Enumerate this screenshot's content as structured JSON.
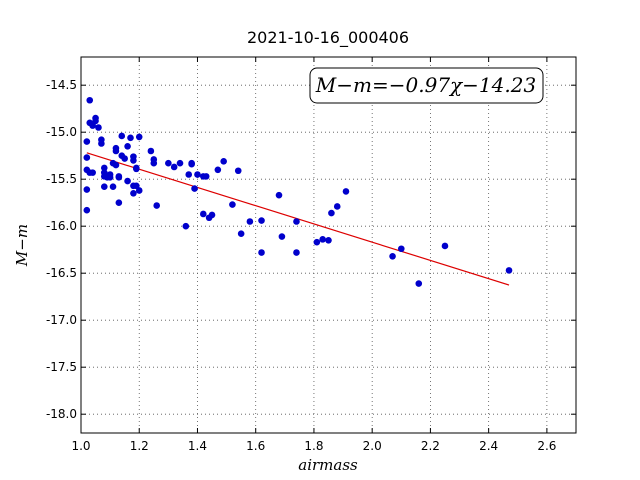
{
  "chart_data": {
    "type": "scatter",
    "title": "2021-10-16_000406",
    "xlabel": "airmass",
    "ylabel": "M−m",
    "annotation": "M−m=−0.97χ−14.23",
    "xlim": [
      1.0,
      2.7
    ],
    "ylim": [
      -18.2,
      -14.2
    ],
    "xticks": [
      "1.0",
      "1.2",
      "1.4",
      "1.6",
      "1.8",
      "2.0",
      "2.2",
      "2.4",
      "2.6"
    ],
    "yticks": [
      "-14.5",
      "-15.0",
      "-15.5",
      "-16.0",
      "-16.5",
      "-17.0",
      "-17.5",
      "-18.0"
    ],
    "grid": true,
    "point_color": "#0000cc",
    "fit_color": "#dd0000",
    "fit": {
      "slope": -0.97,
      "intercept": -14.23,
      "x": [
        1.02,
        2.47
      ]
    },
    "x": [
      1.02,
      1.02,
      1.03,
      1.04,
      1.05,
      1.05,
      1.07,
      1.07,
      1.08,
      1.08,
      1.09,
      1.1,
      1.11,
      1.12,
      1.12,
      1.13,
      1.14,
      1.15,
      1.16,
      1.17,
      1.18,
      1.18,
      1.19,
      1.2,
      1.02,
      1.02,
      1.03,
      1.04,
      1.06,
      1.08,
      1.09,
      1.1,
      1.12,
      1.13,
      1.14,
      1.16,
      1.18,
      1.19,
      1.2,
      1.02,
      1.03,
      1.08,
      1.11,
      1.13,
      1.18,
      1.19,
      1.24,
      1.25,
      1.25,
      1.26,
      1.3,
      1.32,
      1.34,
      1.37,
      1.38,
      1.38,
      1.39,
      1.4,
      1.42,
      1.42,
      1.43,
      1.44,
      1.45,
      1.47,
      1.49,
      1.52,
      1.54,
      1.55,
      1.36,
      1.58,
      1.62,
      1.62,
      1.68,
      1.69,
      1.74,
      1.74,
      1.81,
      1.83,
      1.85,
      1.86,
      1.88,
      1.91,
      2.07,
      2.1,
      2.16,
      2.25,
      2.47
    ],
    "y": [
      -15.1,
      -15.27,
      -15.43,
      -14.93,
      -14.88,
      -14.85,
      -15.08,
      -15.12,
      -15.38,
      -15.43,
      -15.47,
      -15.45,
      -15.33,
      -15.17,
      -15.2,
      -15.48,
      -15.04,
      -15.28,
      -15.15,
      -15.06,
      -15.26,
      -15.3,
      -15.38,
      -15.05,
      -15.4,
      -15.61,
      -14.66,
      -15.43,
      -14.95,
      -15.47,
      -15.48,
      -15.48,
      -15.35,
      -15.47,
      -15.25,
      -15.52,
      -15.57,
      -15.57,
      -15.62,
      -15.83,
      -14.9,
      -15.58,
      -15.58,
      -15.75,
      -15.65,
      -15.39,
      -15.2,
      -15.29,
      -15.33,
      -15.78,
      -15.33,
      -15.37,
      -15.33,
      -15.45,
      -15.34,
      -15.33,
      -15.6,
      -15.45,
      -15.47,
      -15.87,
      -15.47,
      -15.91,
      -15.88,
      -15.4,
      -15.31,
      -15.77,
      -15.41,
      -16.08,
      -16.0,
      -15.95,
      -16.28,
      -15.94,
      -15.67,
      -16.11,
      -16.28,
      -15.95,
      -16.17,
      -16.14,
      -16.15,
      -15.86,
      -15.79,
      -15.63,
      -16.32,
      -16.24,
      -16.61,
      -16.21,
      -16.47
    ]
  }
}
